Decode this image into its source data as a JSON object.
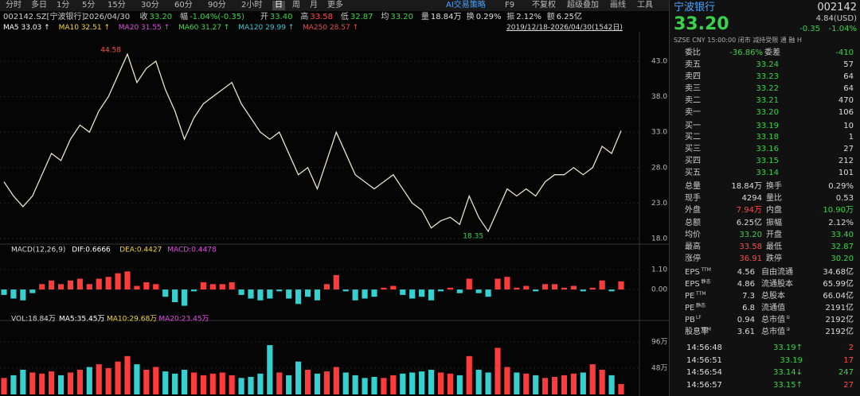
{
  "toolbar": {
    "tabs": [
      "分时",
      "多日",
      "1分",
      "5分",
      "15分",
      "30分",
      "60分",
      "90分",
      "2小时",
      "日",
      "周",
      "月",
      "更多"
    ],
    "active": 9,
    "tools": [
      "AI交易策略",
      "F9",
      "不复权",
      "超级叠加",
      "画线",
      "工具"
    ]
  },
  "quote_bar": [
    "002142.SZ[宁波银行]",
    "2026/04/30",
    "收",
    "33.20",
    "幅",
    "-1.04%(-0.35)",
    "开",
    "33.40",
    "高",
    "33.58",
    "低",
    "32.87",
    "均",
    "33.20",
    "量",
    "18.84万",
    "换",
    "0.29%",
    "振",
    "2.12%",
    "额",
    "6.25亿"
  ],
  "ma_legend": [
    {
      "text": "MA5 33.03 ↑",
      "color": "#ffffff"
    },
    {
      "text": "MA10 32.51 ↑",
      "color": "#f5d83b"
    },
    {
      "text": "MA20 31.55 ↑",
      "color": "#e34ce3"
    },
    {
      "text": "MA60 31.27 ↑",
      "color": "#4fd64f"
    },
    {
      "text": "MA120 29.99 ↑",
      "color": "#3fc9d6"
    },
    {
      "text": "MA250 28.57 ↑",
      "color": "#e05050"
    }
  ],
  "date_range": "2019/12/18-2026/04/30(1542日)",
  "chart_data": [
    {
      "type": "line",
      "color": "#e8e0c8",
      "high_label": 44.58,
      "low_label": 18.35,
      "values": [
        26,
        24,
        22.5,
        24,
        27,
        30,
        29,
        32,
        34,
        33,
        36,
        38,
        41,
        44,
        40,
        42,
        43,
        39,
        36,
        32,
        35,
        37,
        38,
        39,
        40,
        37,
        35,
        33,
        32,
        33,
        30,
        27,
        28,
        25,
        29,
        33,
        30,
        27,
        26,
        25,
        26,
        27,
        25,
        23,
        22,
        19.5,
        20.5,
        21,
        20,
        24,
        21,
        19,
        22,
        25,
        24,
        25,
        24,
        26,
        27,
        27,
        28,
        27,
        28,
        31,
        30,
        33.2
      ],
      "ylim": [
        17.44,
        46.92
      ],
      "yticks": [
        {
          "value": 43,
          "label": "43.0"
        },
        {
          "value": 38,
          "label": "38.0"
        },
        {
          "value": 33,
          "label": "33.0"
        },
        {
          "value": 28,
          "label": "28.0"
        },
        {
          "value": 23,
          "label": "23.0"
        },
        {
          "value": 18,
          "label": "18.0"
        }
      ]
    },
    {
      "type": "bar",
      "title": "MACD(12,26,9)",
      "legend": [
        {
          "text": "DIF:0.6666",
          "color": "#ffffff"
        },
        {
          "text": "DEA:0.4427",
          "color": "#f5d83b"
        },
        {
          "text": "MACD:0.4478",
          "color": "#e34ce3"
        }
      ],
      "values": [
        -0.3,
        -0.5,
        -0.6,
        -0.2,
        0.3,
        0.5,
        0.3,
        0.5,
        0.6,
        0.3,
        0.6,
        0.7,
        0.9,
        1.0,
        0.2,
        0.4,
        0.3,
        -0.4,
        -0.7,
        -0.9,
        -0.1,
        0.4,
        0.3,
        0.3,
        0.4,
        -0.3,
        -0.5,
        -0.6,
        -0.5,
        -0.1,
        -0.5,
        -0.8,
        -0.4,
        -0.6,
        0.3,
        0.8,
        -0.1,
        -0.6,
        -0.5,
        -0.4,
        0.1,
        0.2,
        -0.3,
        -0.5,
        -0.4,
        -0.6,
        -0.1,
        0.1,
        -0.2,
        0.6,
        -0.2,
        -0.4,
        0.6,
        0.7,
        0.1,
        0.2,
        -0.1,
        0.3,
        0.3,
        0.1,
        0.2,
        -0.1,
        0.1,
        0.5,
        -0.1,
        0.45
      ],
      "ylim": [
        -1.58,
        1.72
      ],
      "yticks": [
        {
          "value": 1.1,
          "label": "1.10"
        },
        {
          "value": 0,
          "label": "0.00"
        }
      ]
    },
    {
      "type": "bar",
      "title": "VOL:18.84万",
      "legend": [
        {
          "text": "MA5:35.45万",
          "color": "#ffffff"
        },
        {
          "text": "MA10:29.68万",
          "color": "#f5d83b"
        },
        {
          "text": "MA20:23.45万",
          "color": "#e34ce3"
        }
      ],
      "values": [
        30,
        35,
        45,
        40,
        38,
        42,
        35,
        40,
        45,
        50,
        55,
        48,
        60,
        70,
        55,
        45,
        50,
        42,
        38,
        45,
        40,
        35,
        38,
        40,
        35,
        30,
        32,
        38,
        90,
        40,
        35,
        60,
        45,
        38,
        42,
        50,
        40,
        35,
        30,
        32,
        30,
        35,
        38,
        40,
        42,
        45,
        40,
        38,
        35,
        70,
        45,
        40,
        85,
        50,
        40,
        38,
        35,
        30,
        32,
        35,
        38,
        40,
        55,
        45,
        35,
        18.84
      ],
      "ylim": [
        0,
        122
      ],
      "yticks": [
        {
          "value": 96,
          "label": "96万"
        },
        {
          "value": 48,
          "label": "48万"
        }
      ]
    }
  ],
  "panel": {
    "name": "宁波银行",
    "code": "002142",
    "price": "33.20",
    "usd": "4.84(USD)",
    "change": "-0.35",
    "pct": "-1.04%",
    "status": "SZSE  CNY  15:00:00  闭市   减持受限   通  融  H",
    "ratio": [
      "委比",
      "-36.86%",
      "委差",
      "-410"
    ],
    "book": [
      [
        "卖五",
        "33.24",
        "57"
      ],
      [
        "卖四",
        "33.23",
        "64"
      ],
      [
        "卖三",
        "33.22",
        "64"
      ],
      [
        "卖二",
        "33.21",
        "470"
      ],
      [
        "卖一",
        "33.20",
        "106"
      ],
      [
        "买一",
        "33.19",
        "10"
      ],
      [
        "买二",
        "33.18",
        "1"
      ],
      [
        "买三",
        "33.16",
        "27"
      ],
      [
        "买四",
        "33.15",
        "212"
      ],
      [
        "买五",
        "33.14",
        "101"
      ]
    ],
    "stats": [
      {
        "label": "总量",
        "value": "18.84万",
        "color": "#ddd"
      },
      {
        "label": "换手",
        "value": "0.29%",
        "color": "#ddd"
      },
      {
        "label": "现手",
        "value": "4294",
        "color": "#ddd"
      },
      {
        "label": "量比",
        "value": "0.53",
        "color": "#ddd"
      },
      {
        "label": "外盘",
        "value": "7.94万",
        "color": "#ff4a4a"
      },
      {
        "label": "内盘",
        "value": "10.90万",
        "color": "#3ad24a"
      },
      {
        "label": "总额",
        "value": "6.25亿",
        "color": "#ddd"
      },
      {
        "label": "振幅",
        "value": "2.12%",
        "color": "#ddd"
      },
      {
        "label": "均价",
        "value": "33.20",
        "color": "#3ad24a"
      },
      {
        "label": "开盘",
        "value": "33.40",
        "color": "#3ad24a"
      },
      {
        "label": "最高",
        "value": "33.58",
        "color": "#ff4a4a"
      },
      {
        "label": "最低",
        "value": "32.87",
        "color": "#3ad24a"
      },
      {
        "label": "涨停",
        "value": "36.91",
        "color": "#ff4a4a"
      },
      {
        "label": "跌停",
        "value": "30.20",
        "color": "#3ad24a"
      }
    ],
    "fundamentals": [
      {
        "label": "EPS",
        "sup": "TTM",
        "value": "4.56"
      },
      {
        "label": "自由流通",
        "value": "34.68亿"
      },
      {
        "label": "EPS",
        "sup": "静态",
        "value": "4.86"
      },
      {
        "label": "流通股本",
        "value": "65.99亿"
      },
      {
        "label": "PE",
        "sup": "TTM",
        "value": "7.3"
      },
      {
        "label": "总股本",
        "value": "66.04亿"
      },
      {
        "label": "PE",
        "sup": "静态",
        "value": "6.8"
      },
      {
        "label": "流通值",
        "value": "2191亿"
      },
      {
        "label": "PB",
        "sup": "LF",
        "value": "0.94"
      },
      {
        "label": "总市值",
        "sup": "①",
        "value": "2192亿"
      },
      {
        "label": "股息率",
        "sup": "TTM",
        "value": "3.61"
      },
      {
        "label": "总市值",
        "sup": "②",
        "value": "2192亿"
      }
    ],
    "ticks": [
      [
        "14:56:48",
        "33.19↑",
        "2"
      ],
      [
        "14:56:51",
        "33.19",
        "17"
      ],
      [
        "14:56:54",
        "33.14↓",
        "247"
      ],
      [
        "14:56:57",
        "33.15↑",
        "27"
      ]
    ]
  }
}
